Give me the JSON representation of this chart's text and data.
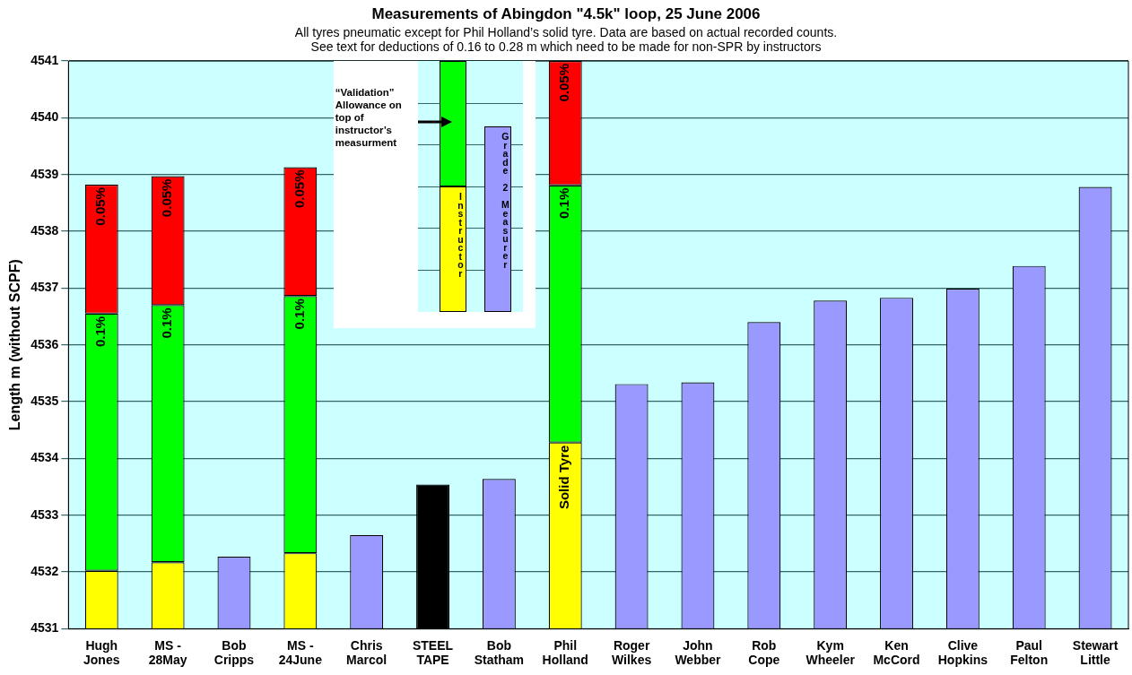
{
  "chart_data": {
    "type": "bar",
    "title": "Measurements of Abingdon \"4.5k\" loop, 25 June 2006",
    "subtitle": "All tyres pneumatic except for Phil Holland’s solid tyre. Data are based on actual recorded counts.\nSee text for deductions of 0.16 to 0.28 m which need to be made for non-SPR by instructors",
    "ylabel": "Length m (without SCPF)",
    "categories": [
      "Hugh\nJones",
      "MS -\n28May",
      "Bob\nCripps",
      "MS -\n24June",
      "Chris\nMarcol",
      "STEEL\nTAPE",
      "Bob\nStatham",
      "Phil\nHolland",
      "Roger\nWilkes",
      "John\nWebber",
      "Rob\nCope",
      "Kym\nWheeler",
      "Ken\nMcCord",
      "Clive\nHopkins",
      "Paul\nFelton",
      "Stewart\nLittle"
    ],
    "series": [
      {
        "color": "#ff0000",
        "base": [
          4536.55,
          4536.7,
          null,
          4536.86,
          null,
          null,
          null,
          4538.81,
          null,
          null,
          null,
          null,
          null,
          null,
          null,
          null
        ],
        "values": [
          2.27,
          2.27,
          null,
          2.27,
          null,
          null,
          null,
          2.19,
          null,
          null,
          null,
          null,
          null,
          null,
          null,
          null
        ]
      },
      {
        "color": "#00ff00",
        "base": [
          4532.02,
          4532.17,
          null,
          4532.33,
          null,
          null,
          null,
          4534.28,
          null,
          null,
          null,
          null,
          null,
          null,
          null,
          null
        ],
        "values": [
          4.53,
          4.53,
          null,
          4.53,
          null,
          null,
          null,
          4.53,
          null,
          null,
          null,
          null,
          null,
          null,
          null,
          null
        ]
      },
      {
        "color": "#ffff00",
        "values": [
          4532.02,
          4532.17,
          null,
          4532.33,
          null,
          null,
          null,
          4534.28,
          null,
          null,
          null,
          null,
          null,
          null,
          null,
          null
        ]
      },
      {
        "color": "#9999ff",
        "values": [
          null,
          null,
          4532.27,
          null,
          4532.65,
          null,
          4533.64,
          null,
          4535.31,
          4535.34,
          4536.4,
          4536.78,
          4536.83,
          4536.99,
          4537.39,
          4538.78
        ]
      },
      {
        "color": "#000000",
        "values": [
          null,
          null,
          null,
          null,
          null,
          4533.54,
          null,
          null,
          null,
          null,
          null,
          null,
          null,
          null,
          null,
          null
        ]
      }
    ],
    "ylim": [
      4531,
      4541
    ],
    "yticks": [
      4531,
      4532,
      4533,
      4534,
      4535,
      4536,
      4537,
      4538,
      4539,
      4540,
      4541
    ],
    "grid": "y",
    "legend": false,
    "annotations": [
      "“Validation” Allowance on top of instructor’s measurment",
      "Instructor",
      "Grade 2 Measurer",
      {
        "text": "0.1%",
        "x": "Hugh\nJones",
        "y": 4536.55
      },
      {
        "text": "0.1%",
        "x": "MS -\n28May",
        "y": 4536.7
      },
      {
        "text": "0.1%",
        "x": "MS -\n24June",
        "y": 4536.86
      },
      {
        "text": "0.1%",
        "x": "Phil\nHolland",
        "y": 4538.81
      },
      {
        "text": "0.05%",
        "x": "Hugh\nJones",
        "y": 4538.82
      },
      {
        "text": "0.05%",
        "x": "MS -\n28May",
        "y": 4538.97
      },
      {
        "text": "0.05%",
        "x": "MS -\n24June",
        "y": 4539.13
      },
      {
        "text": "0.05%",
        "x": "Phil\nHolland",
        "y": 4541
      },
      {
        "text": "Solid Tyre",
        "x": "Phil\nHolland",
        "y": 4534.28
      }
    ]
  }
}
